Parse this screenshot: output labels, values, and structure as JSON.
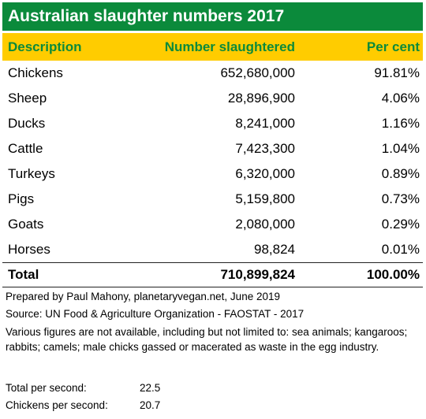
{
  "title": "Australian slaughter numbers 2017",
  "columns": {
    "description": "Description",
    "number": "Number slaughtered",
    "percent": "Per cent"
  },
  "rows": [
    {
      "description": "Chickens",
      "number": "652,680,000",
      "percent": "91.81%"
    },
    {
      "description": "Sheep",
      "number": "28,896,900",
      "percent": "4.06%"
    },
    {
      "description": "Ducks",
      "number": "8,241,000",
      "percent": "1.16%"
    },
    {
      "description": "Cattle",
      "number": "7,423,300",
      "percent": "1.04%"
    },
    {
      "description": "Turkeys",
      "number": "6,320,000",
      "percent": "0.89%"
    },
    {
      "description": "Pigs",
      "number": "5,159,800",
      "percent": "0.73%"
    },
    {
      "description": "Goats",
      "number": "2,080,000",
      "percent": "0.29%"
    },
    {
      "description": "Horses",
      "number": "98,824",
      "percent": "0.01%"
    }
  ],
  "total": {
    "description": "Total",
    "number": "710,899,824",
    "percent": "100.00%"
  },
  "notes": {
    "prepared_by": "Prepared by Paul Mahony, planetaryvegan.net, June 2019",
    "source": "Source: UN Food & Agriculture Organization - FAOSTAT - 2017",
    "caveat": "Various figures are not available, including but not limited to: sea animals; kangaroos; rabbits; camels; male chicks gassed or macerated as waste in the egg industry."
  },
  "stats": [
    {
      "label": "Total per second:",
      "value": "22.5"
    },
    {
      "label": "Chickens per second:",
      "value": "20.7"
    }
  ],
  "colors": {
    "title_bg": "#0b8a3b",
    "header_bg": "#ffcc00",
    "header_text": "#0b8a3b"
  }
}
